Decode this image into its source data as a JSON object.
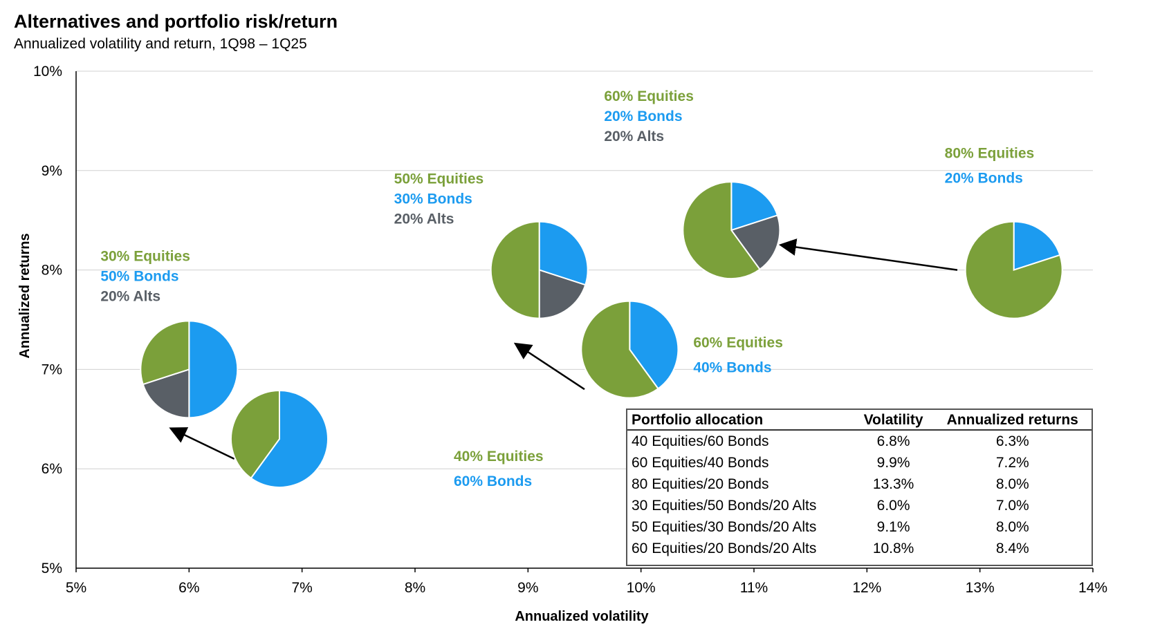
{
  "chart_data": {
    "type": "scatter",
    "title": "Alternatives and portfolio risk/return",
    "subtitle": "Annualized  volatility and return, 1Q98 – 1Q25",
    "xlabel": "Annualized volatility",
    "ylabel": "Annualized returns",
    "xlim": [
      5,
      14
    ],
    "ylim": [
      5,
      10
    ],
    "x_ticks": [
      "5%",
      "6%",
      "7%",
      "8%",
      "9%",
      "10%",
      "11%",
      "12%",
      "13%",
      "14%"
    ],
    "y_ticks": [
      "5%",
      "6%",
      "7%",
      "8%",
      "9%",
      "10%"
    ],
    "grid": "horizontal",
    "colors": {
      "equities": "#7ba03a",
      "bonds": "#1c9bf0",
      "alts": "#595f66"
    },
    "points": [
      {
        "x": 6.0,
        "y": 7.0,
        "equities": 30,
        "bonds": 50,
        "alts": 20,
        "labels": [
          "30% Equities",
          "50% Bonds",
          "20% Alts"
        ]
      },
      {
        "x": 6.8,
        "y": 6.3,
        "equities": 40,
        "bonds": 60,
        "alts": 0,
        "labels": [
          "40% Equities",
          "60% Bonds"
        ]
      },
      {
        "x": 9.1,
        "y": 8.0,
        "equities": 50,
        "bonds": 30,
        "alts": 20,
        "labels": [
          "50% Equities",
          "30% Bonds",
          "20% Alts"
        ]
      },
      {
        "x": 9.9,
        "y": 7.2,
        "equities": 60,
        "bonds": 40,
        "alts": 0,
        "labels": [
          "60% Equities",
          "40% Bonds"
        ]
      },
      {
        "x": 10.8,
        "y": 8.4,
        "equities": 60,
        "bonds": 20,
        "alts": 20,
        "labels": [
          "60% Equities",
          "20% Bonds",
          "20% Alts"
        ]
      },
      {
        "x": 13.3,
        "y": 8.0,
        "equities": 80,
        "bonds": 20,
        "alts": 0,
        "labels": [
          "80% Equities",
          "20% Bonds"
        ]
      }
    ],
    "arrows": [
      {
        "from": [
          6.4,
          6.1
        ],
        "to": [
          5.85,
          6.4
        ]
      },
      {
        "from": [
          9.5,
          6.8
        ],
        "to": [
          8.9,
          7.25
        ]
      },
      {
        "from": [
          12.8,
          8.0
        ],
        "to": [
          11.25,
          8.25
        ]
      }
    ],
    "table": {
      "headers": [
        "Portfolio allocation",
        "Volatility",
        "Annualized returns"
      ],
      "rows": [
        [
          "40 Equities/60 Bonds",
          "6.8%",
          "6.3%"
        ],
        [
          "60 Equities/40 Bonds",
          "9.9%",
          "7.2%"
        ],
        [
          "80 Equities/20 Bonds",
          "13.3%",
          "8.0%"
        ],
        [
          "30 Equities/50 Bonds/20 Alts",
          "6.0%",
          "7.0%"
        ],
        [
          "50 Equities/30 Bonds/20 Alts",
          "9.1%",
          "8.0%"
        ],
        [
          "60 Equities/20 Bonds/20 Alts",
          "10.8%",
          "8.4%"
        ]
      ]
    }
  }
}
